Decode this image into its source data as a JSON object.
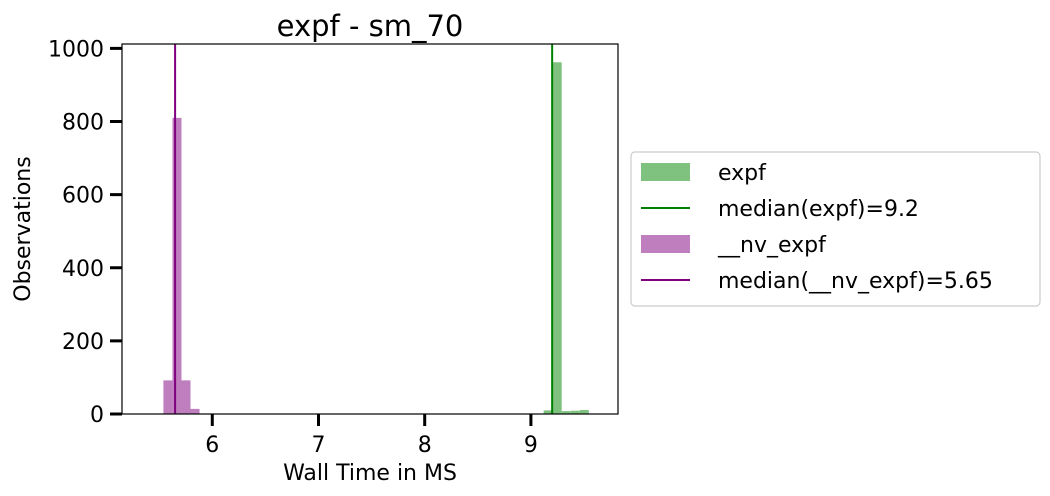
{
  "chart_data": {
    "type": "bar",
    "title": "expf - sm_70",
    "xlabel": "Wall Time in MS",
    "ylabel": "Observations",
    "xlim": [
      5.15,
      9.82
    ],
    "ylim": [
      0,
      1012
    ],
    "xticks": [
      6,
      7,
      8,
      9
    ],
    "yticks": [
      0,
      200,
      400,
      600,
      800,
      1000
    ],
    "grid": false,
    "legend_position": "right-outside",
    "series": [
      {
        "name": "expf",
        "kind": "histogram",
        "color": "#7fc27f",
        "bins": [
          {
            "x0": 9.12,
            "x1": 9.205,
            "count": 10
          },
          {
            "x0": 9.205,
            "x1": 9.29,
            "count": 962
          },
          {
            "x0": 9.29,
            "x1": 9.375,
            "count": 8
          },
          {
            "x0": 9.375,
            "x1": 9.46,
            "count": 9
          },
          {
            "x0": 9.46,
            "x1": 9.545,
            "count": 11
          }
        ]
      },
      {
        "name": "median(expf)=9.2",
        "kind": "vline",
        "color": "#008000",
        "x": 9.2
      },
      {
        "name": "__nv_expf",
        "kind": "histogram",
        "color": "#bf7fbf",
        "bins": [
          {
            "x0": 5.54,
            "x1": 5.625,
            "count": 92
          },
          {
            "x0": 5.625,
            "x1": 5.71,
            "count": 810
          },
          {
            "x0": 5.71,
            "x1": 5.795,
            "count": 92
          },
          {
            "x0": 5.795,
            "x1": 5.88,
            "count": 14
          }
        ]
      },
      {
        "name": "median(__nv_expf)=5.65",
        "kind": "vline",
        "color": "#800080",
        "x": 5.65
      }
    ]
  }
}
